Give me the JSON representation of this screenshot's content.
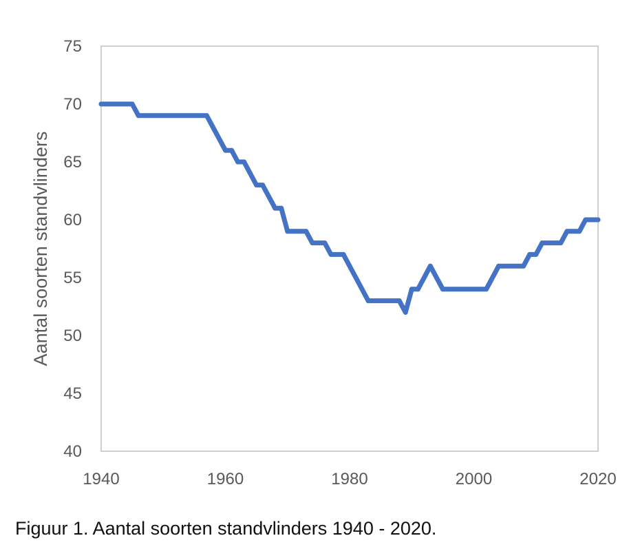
{
  "caption": "Figuur 1. Aantal soorten standvlinders 1940 - 2020.",
  "colors": {
    "line": "#4472C4",
    "frame": "#BFBFBF",
    "text": "#595959"
  },
  "chart_data": {
    "type": "line",
    "ylabel": "Aantal soorten standvlinders",
    "xlabel": "",
    "xlim": [
      1940,
      2020
    ],
    "ylim": [
      40,
      75
    ],
    "x_ticks": [
      1940,
      1960,
      1980,
      2000,
      2020
    ],
    "y_ticks": [
      40,
      45,
      50,
      55,
      60,
      65,
      70,
      75
    ],
    "grid": false,
    "series": [
      {
        "x": [
          1940,
          1945,
          1946,
          1957,
          1960,
          1961,
          1962,
          1963,
          1965,
          1966,
          1968,
          1969,
          1970,
          1973,
          1974,
          1976,
          1977,
          1979,
          1983,
          1988,
          1989,
          1990,
          1991,
          1993,
          1995,
          2002,
          2004,
          2008,
          2009,
          2010,
          2011,
          2014,
          2015,
          2017,
          2018,
          2020
        ],
        "y": [
          70,
          70,
          69,
          69,
          66,
          66,
          65,
          65,
          63,
          63,
          61,
          61,
          59,
          59,
          58,
          58,
          57,
          57,
          53,
          53,
          52,
          54,
          54,
          56,
          54,
          54,
          56,
          56,
          57,
          57,
          58,
          58,
          59,
          59,
          60,
          60
        ]
      }
    ]
  }
}
